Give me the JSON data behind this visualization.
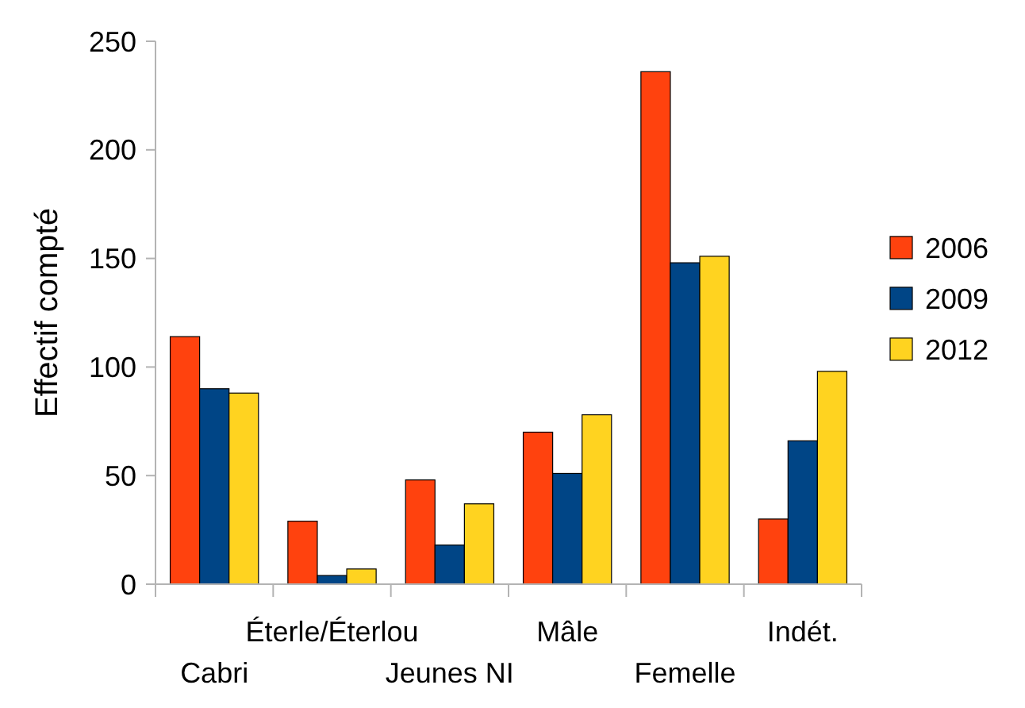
{
  "chart_data": {
    "type": "bar",
    "ylabel": "Effectif compté",
    "categories": [
      "Cabri",
      "Éterle/Éterlou",
      "Jeunes NI",
      "Mâle",
      "Femelle",
      "Indét."
    ],
    "series": [
      {
        "name": "2006",
        "color": "#ff420e",
        "values": [
          114,
          29,
          48,
          70,
          236,
          30
        ]
      },
      {
        "name": "2009",
        "color": "#004586",
        "values": [
          90,
          4,
          18,
          51,
          148,
          66
        ]
      },
      {
        "name": "2012",
        "color": "#ffd320",
        "values": [
          88,
          7,
          37,
          78,
          151,
          98
        ]
      }
    ],
    "ylim": [
      0,
      250
    ],
    "yticks": [
      0,
      50,
      100,
      150,
      200,
      250
    ],
    "grid": false,
    "legend": "right"
  }
}
